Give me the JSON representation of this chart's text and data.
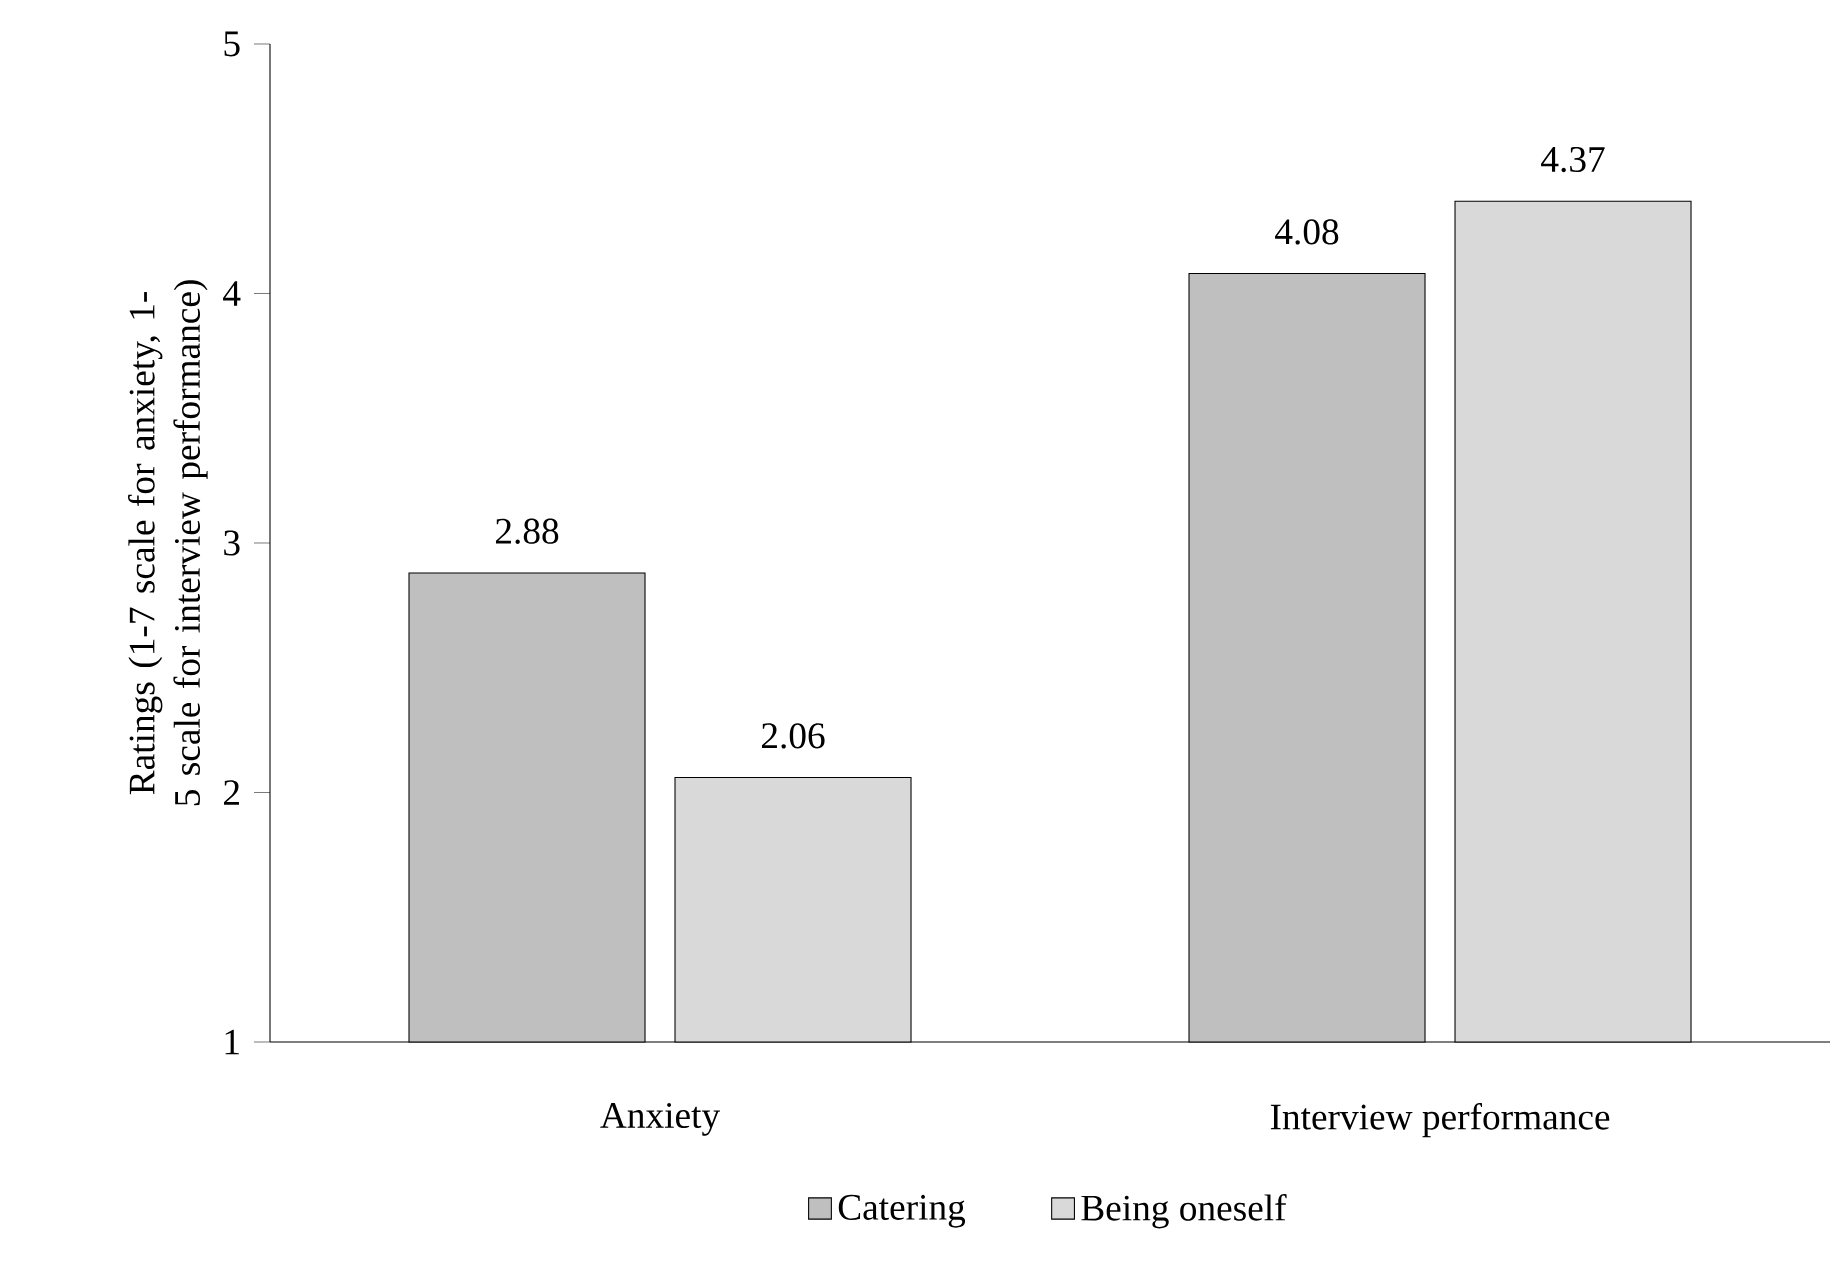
{
  "chart_data": {
    "type": "bar",
    "ylabel": "Ratings (1-7 scale for anxiety, 1-5 scale for interview performance)",
    "categories": [
      "Anxiety",
      "Interview performance"
    ],
    "series": [
      {
        "name": "Catering",
        "color": "#bfbfbf",
        "values": [
          2.88,
          4.08
        ]
      },
      {
        "name": "Being oneself",
        "color": "#d9d9d9",
        "values": [
          2.06,
          4.37
        ]
      }
    ],
    "ylim": [
      1,
      5
    ],
    "yticks": [
      1,
      2,
      3,
      4,
      5
    ],
    "data_labels": true,
    "legend": "bottom"
  }
}
